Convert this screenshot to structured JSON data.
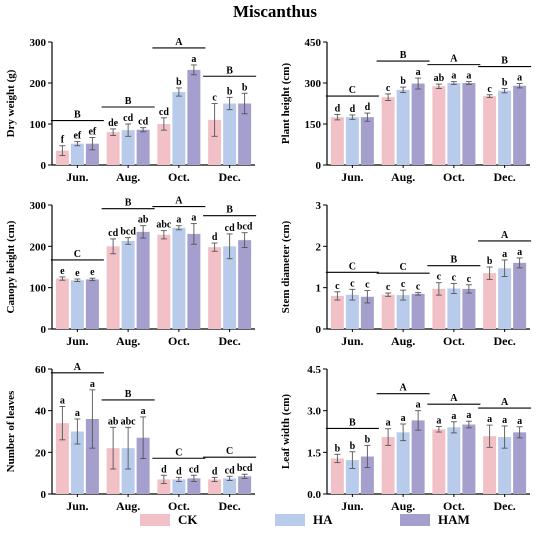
{
  "title": "Miscanthus",
  "legend": [
    {
      "name": "CK",
      "color": "#f2c1c7"
    },
    {
      "name": "HA",
      "color": "#b9cbea"
    },
    {
      "name": "HAM",
      "color": "#a49fcd"
    }
  ],
  "chart_data": [
    {
      "type": "bar",
      "ylabel": "Dry weight (g)",
      "categories": [
        "Jun.",
        "Aug.",
        "Oct.",
        "Dec."
      ],
      "ylim": [
        0,
        300
      ],
      "yticks": [
        "0",
        "100",
        "200",
        "300"
      ],
      "series": [
        {
          "name": "CK",
          "values": [
            35,
            80,
            100,
            110
          ],
          "errors": [
            12,
            8,
            15,
            40
          ],
          "labels": [
            "f",
            "de",
            "cd",
            "c"
          ]
        },
        {
          "name": "HA",
          "values": [
            52,
            85,
            178,
            150
          ],
          "errors": [
            5,
            15,
            10,
            15
          ],
          "labels": [
            "ef",
            "cd",
            "b",
            "b"
          ]
        },
        {
          "name": "HAM",
          "values": [
            52,
            86,
            232,
            150
          ],
          "errors": [
            15,
            5,
            12,
            25
          ],
          "labels": [
            "ef",
            "cd",
            "a",
            "b"
          ]
        }
      ],
      "group_labels": [
        "B",
        "B",
        "A",
        "B"
      ]
    },
    {
      "type": "bar",
      "ylabel": "Plant height (cm)",
      "categories": [
        "Jun.",
        "Aug.",
        "Oct.",
        "Dec."
      ],
      "ylim": [
        0,
        450
      ],
      "yticks": [
        "0",
        "150",
        "300",
        "450"
      ],
      "series": [
        {
          "name": "CK",
          "values": [
            175,
            248,
            288,
            252
          ],
          "errors": [
            10,
            12,
            8,
            5
          ],
          "labels": [
            "d",
            "c",
            "ab",
            "c"
          ]
        },
        {
          "name": "HA",
          "values": [
            175,
            275,
            300,
            272
          ],
          "errors": [
            8,
            10,
            5,
            8
          ],
          "labels": [
            "d",
            "b",
            "a",
            "b"
          ]
        },
        {
          "name": "HAM",
          "values": [
            175,
            298,
            300,
            290
          ],
          "errors": [
            15,
            20,
            5,
            8
          ],
          "labels": [
            "d",
            "a",
            "a",
            "a"
          ]
        }
      ],
      "group_labels": [
        "C",
        "B",
        "A",
        "B"
      ]
    },
    {
      "type": "bar",
      "ylabel": "Canopy height (cm)",
      "categories": [
        "Jun.",
        "Aug.",
        "Oct.",
        "Dec."
      ],
      "ylim": [
        0,
        300
      ],
      "yticks": [
        "0",
        "100",
        "200",
        "300"
      ],
      "series": [
        {
          "name": "CK",
          "values": [
            122,
            200,
            228,
            198
          ],
          "errors": [
            4,
            18,
            10,
            10
          ],
          "labels": [
            "e",
            "cd",
            "abc",
            "d"
          ]
        },
        {
          "name": "HA",
          "values": [
            118,
            213,
            245,
            200
          ],
          "errors": [
            3,
            8,
            5,
            30
          ],
          "labels": [
            "e",
            "bcd",
            "a",
            "cd"
          ]
        },
        {
          "name": "HAM",
          "values": [
            120,
            235,
            230,
            215
          ],
          "errors": [
            3,
            15,
            25,
            18
          ],
          "labels": [
            "e",
            "ab",
            "a",
            "bcd"
          ]
        }
      ],
      "group_labels": [
        "C",
        "B",
        "A",
        "B"
      ]
    },
    {
      "type": "bar",
      "ylabel": "Stem diameter (cm)",
      "categories": [
        "Jun.",
        "Aug.",
        "Oct.",
        "Dec."
      ],
      "ylim": [
        0,
        3
      ],
      "yticks": [
        "0",
        "1",
        "2",
        "3"
      ],
      "series": [
        {
          "name": "CK",
          "values": [
            0.8,
            0.83,
            0.97,
            1.35
          ],
          "errors": [
            0.1,
            0.04,
            0.15,
            0.15
          ],
          "labels": [
            "c",
            "c",
            "c",
            "b"
          ]
        },
        {
          "name": "HA",
          "values": [
            0.83,
            0.82,
            0.98,
            1.47
          ],
          "errors": [
            0.13,
            0.12,
            0.12,
            0.2
          ],
          "labels": [
            "c",
            "c",
            "c",
            "a"
          ]
        },
        {
          "name": "HAM",
          "values": [
            0.78,
            0.85,
            0.97,
            1.6
          ],
          "errors": [
            0.15,
            0.03,
            0.1,
            0.12
          ],
          "labels": [
            "c",
            "c",
            "c",
            "a"
          ]
        }
      ],
      "group_labels": [
        "C",
        "C",
        "B",
        "A"
      ]
    },
    {
      "type": "bar",
      "ylabel": "Number of leaves",
      "categories": [
        "Jun.",
        "Aug.",
        "Oct.",
        "Dec."
      ],
      "ylim": [
        0,
        60
      ],
      "yticks": [
        "0",
        "20",
        "40",
        "60"
      ],
      "series": [
        {
          "name": "CK",
          "values": [
            34,
            22,
            7,
            7
          ],
          "errors": [
            8,
            10,
            2,
            1
          ],
          "labels": [
            "a",
            "ab",
            "d",
            "d"
          ]
        },
        {
          "name": "HA",
          "values": [
            30,
            22,
            7,
            7.5
          ],
          "errors": [
            6,
            10,
            1,
            1
          ],
          "labels": [
            "a",
            "abc",
            "d",
            "cd"
          ]
        },
        {
          "name": "HAM",
          "values": [
            36,
            27,
            7.5,
            8.5
          ],
          "errors": [
            14,
            10,
            1.5,
            1
          ],
          "labels": [
            "a",
            "a",
            "cd",
            "bcd"
          ]
        }
      ],
      "group_labels": [
        "A",
        "B",
        "C",
        "C"
      ]
    },
    {
      "type": "bar",
      "ylabel": "Leaf width (cm)",
      "categories": [
        "Jun.",
        "Aug.",
        "Oct.",
        "Dec."
      ],
      "ylim": [
        0,
        4.5
      ],
      "yticks": [
        "0.0",
        "1.5",
        "3.0",
        "4.5"
      ],
      "series": [
        {
          "name": "CK",
          "values": [
            1.28,
            2.05,
            2.33,
            2.08
          ],
          "errors": [
            0.15,
            0.3,
            0.1,
            0.4
          ],
          "labels": [
            "b",
            "a",
            "a",
            "a"
          ]
        },
        {
          "name": "HA",
          "values": [
            1.22,
            2.22,
            2.4,
            2.05
          ],
          "errors": [
            0.3,
            0.3,
            0.2,
            0.4
          ],
          "labels": [
            "b",
            "a",
            "a",
            "a"
          ]
        },
        {
          "name": "HAM",
          "values": [
            1.35,
            2.65,
            2.5,
            2.22
          ],
          "errors": [
            0.4,
            0.35,
            0.12,
            0.2
          ],
          "labels": [
            "b",
            "a",
            "a",
            "a"
          ]
        }
      ],
      "group_labels": [
        "B",
        "A",
        "A",
        "A"
      ]
    }
  ]
}
